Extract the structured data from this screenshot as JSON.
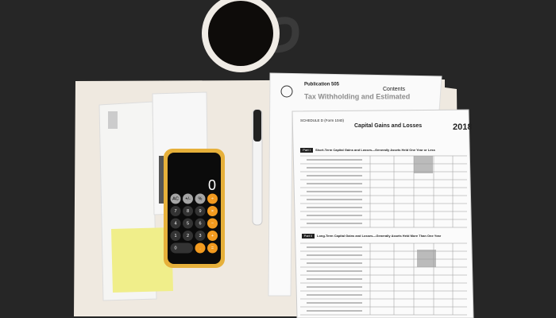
{
  "publication": {
    "title": "Publication 505",
    "heading": "Tax Withholding and Estimated",
    "contents": "Contents"
  },
  "schedule": {
    "form": "SCHEDULE D (Form 1040)",
    "title": "Capital Gains and Losses",
    "year": "2018",
    "part1": "Part I",
    "part1_title": "Short-Term Capital Gains and Losses—Generally Assets Held One Year or Less",
    "part2": "Part II",
    "part2_title": "Long-Term Capital Gains and Losses—Generally Assets Held More Than One Year"
  },
  "calculator": {
    "display": "0",
    "keys": [
      "AC",
      "+/-",
      "%",
      "÷",
      "7",
      "8",
      "9",
      "×",
      "4",
      "5",
      "6",
      "−",
      "1",
      "2",
      "3",
      "+",
      "0",
      ".",
      "="
    ]
  }
}
